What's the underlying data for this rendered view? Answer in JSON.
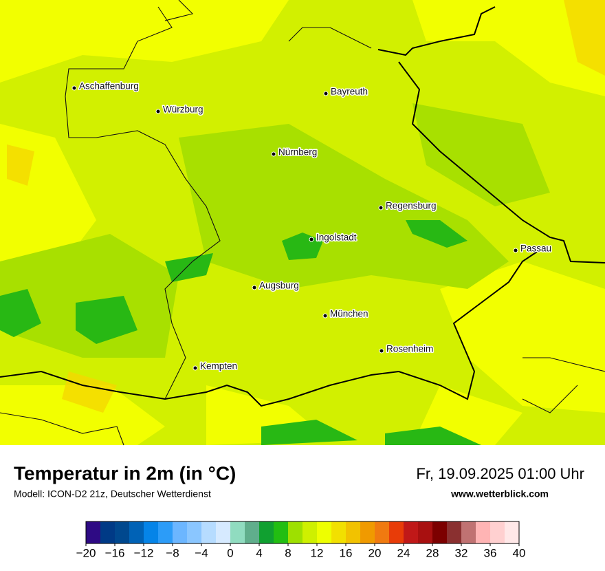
{
  "map": {
    "cities": [
      "Aschaffenburg",
      "Würzburg",
      "Bayreuth",
      "Nürnberg",
      "Regensburg",
      "Ingolstadt",
      "Passau",
      "Augsburg",
      "München",
      "Rosenheim",
      "Kempten"
    ]
  },
  "footer": {
    "title": "Temperatur in 2m (in °C)",
    "subtitle": "Modell: ICON-D2 21z, Deutscher Wetterdienst",
    "datetime": "Fr, 19.09.2025 01:00 Uhr",
    "website": "www.wetterblick.com"
  },
  "colorbar": {
    "lim": [
      -20,
      40
    ],
    "ticks": [
      {
        "value": -20,
        "label": "−20"
      },
      {
        "value": -16,
        "label": "−16"
      },
      {
        "value": -12,
        "label": "−12"
      },
      {
        "value": -8,
        "label": "−8"
      },
      {
        "value": -4,
        "label": "−4"
      },
      0,
      4,
      8,
      12,
      16,
      20,
      24,
      28,
      32,
      36,
      40
    ],
    "colors": [
      "#2e0a84",
      "#003a86",
      "#00488e",
      "#0062b6",
      "#0584e8",
      "#2c9cf8",
      "#6cb6ff",
      "#8ac6ff",
      "#b6dcff",
      "#d6eaff",
      "#90dcc0",
      "#60ae8c",
      "#10a030",
      "#22be12",
      "#9ee000",
      "#cef000",
      "#eeff00",
      "#f2e000",
      "#f2c200",
      "#f09a00",
      "#f07a10",
      "#e83c08",
      "#c01818",
      "#a81010",
      "#7c0000",
      "#8a3030",
      "#c07272",
      "#ffb4b4",
      "#ffd0d0",
      "#ffe8e8"
    ]
  }
}
